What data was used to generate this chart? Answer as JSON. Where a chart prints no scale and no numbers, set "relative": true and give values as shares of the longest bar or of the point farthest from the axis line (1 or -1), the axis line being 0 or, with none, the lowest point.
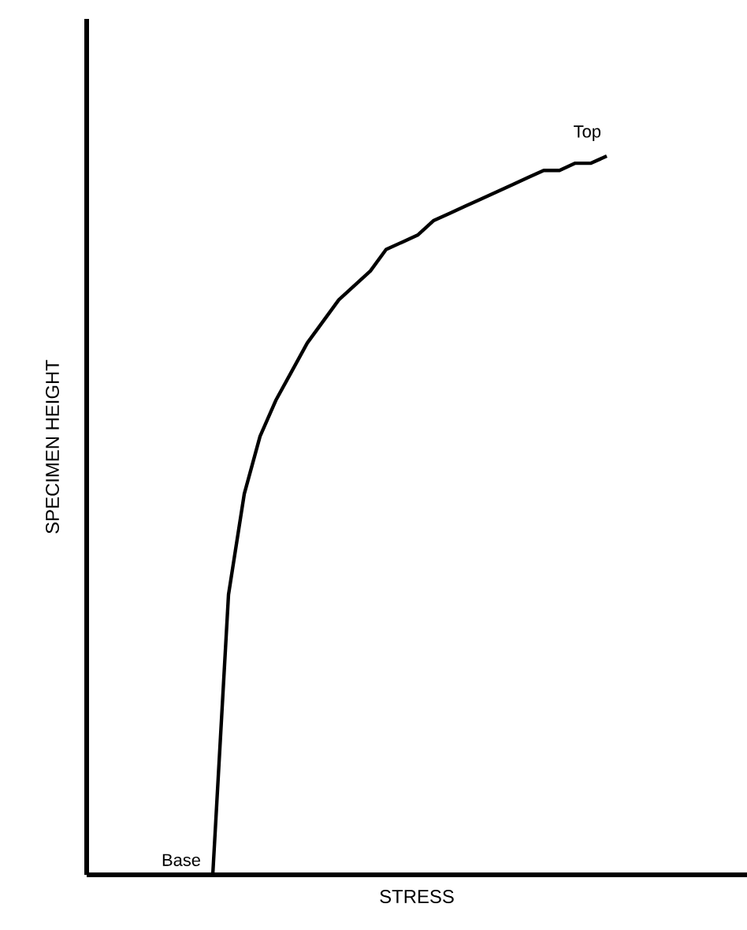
{
  "chart_data": {
    "type": "line",
    "relative": true,
    "xlabel": "STRESS",
    "ylabel": "SPECIMEN HEIGHT",
    "marker": "none",
    "line_style": "solid",
    "categories": [
      null,
      null,
      null,
      null,
      null,
      null,
      null,
      null,
      null,
      null,
      null,
      null,
      null,
      null,
      null,
      null,
      null,
      null,
      null,
      null,
      null,
      null,
      null,
      null,
      null,
      null,
      null,
      null,
      null,
      null,
      null,
      null,
      null,
      null
    ],
    "series": [
      {
        "color": "#000000",
        "values": [
          null,
          null,
          null,
          null,
          null,
          null,
          null,
          null,
          0,
          0.39,
          0.53,
          0.61,
          0.66,
          0.7,
          0.74,
          0.77,
          0.8,
          0.82,
          0.84,
          0.87,
          0.88,
          0.89,
          0.91,
          0.92,
          0.93,
          0.94,
          0.95,
          0.96,
          0.97,
          0.98,
          0.98,
          0.99,
          0.99,
          1
        ]
      }
    ],
    "annotations": [
      "Top",
      "Base"
    ]
  }
}
